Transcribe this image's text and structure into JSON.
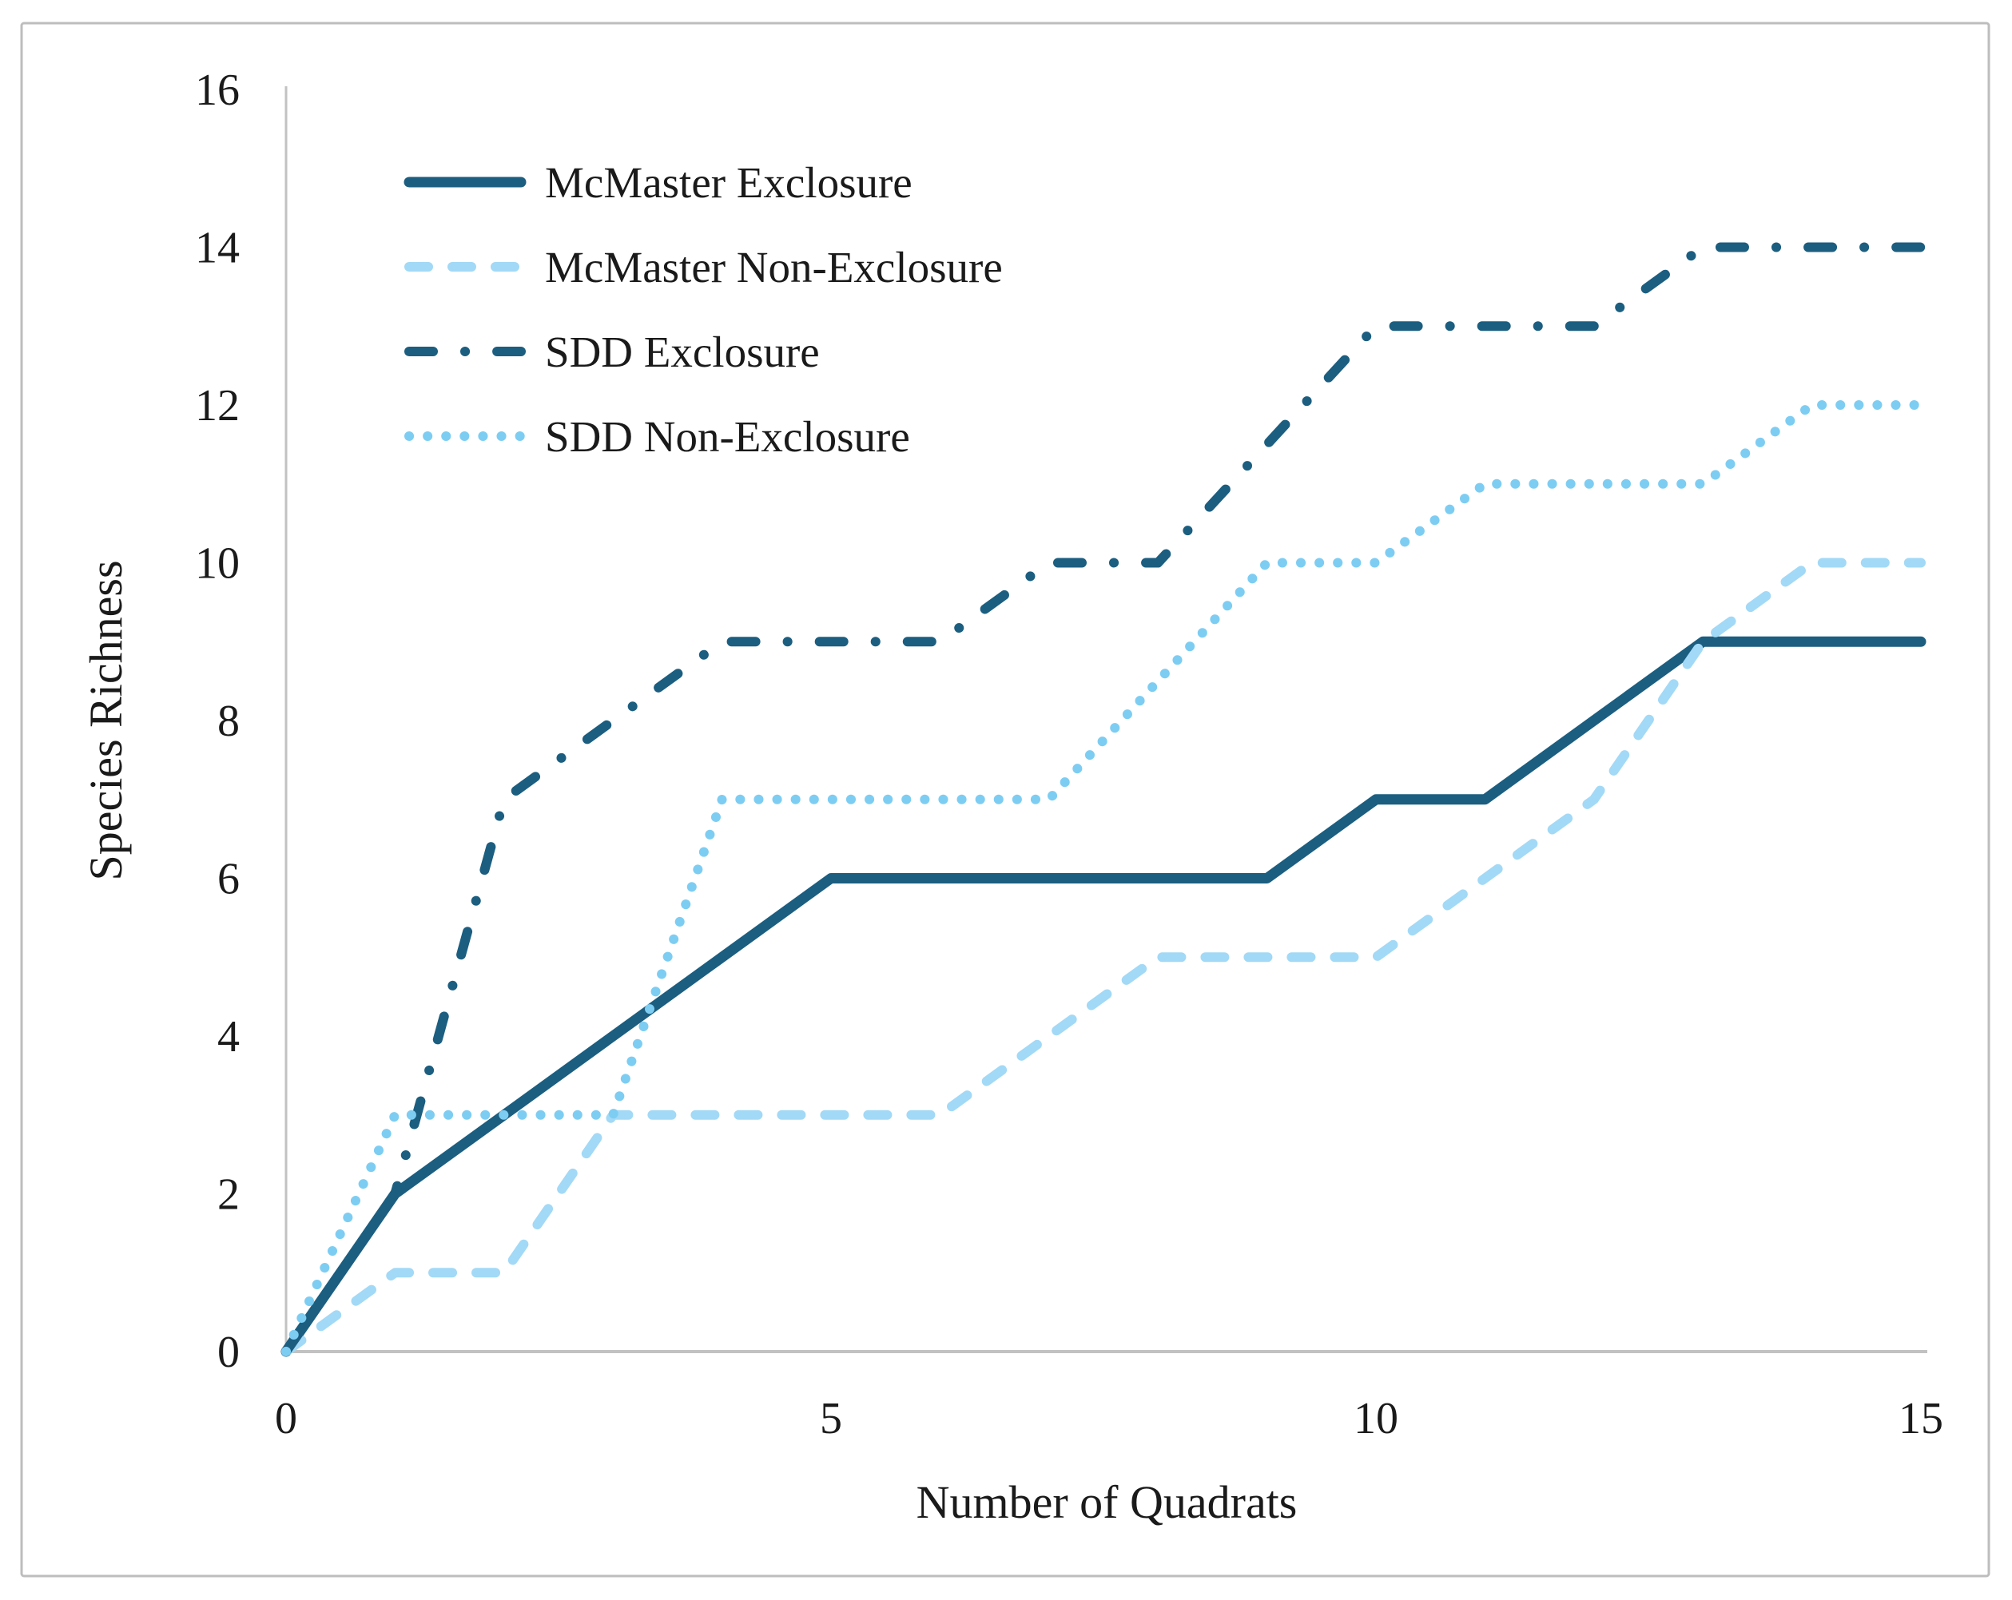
{
  "figure": {
    "background": "#ffffff",
    "border_color": "#bdbdbd",
    "axis_line_color": "#c2c2c2",
    "text_color": "#1a1a1a"
  },
  "chart_data": {
    "type": "line",
    "title": "",
    "xlabel": "Number of Quadrats",
    "ylabel": "Species Richness",
    "xlim": [
      0,
      15
    ],
    "ylim": [
      0,
      16
    ],
    "x_ticks": [
      0,
      5,
      10,
      15
    ],
    "y_ticks": [
      0,
      2,
      4,
      6,
      8,
      10,
      12,
      14,
      16
    ],
    "grid": false,
    "legend_position": "upper-left-inside",
    "x": [
      0,
      1,
      2,
      3,
      4,
      5,
      6,
      7,
      8,
      9,
      10,
      11,
      12,
      13,
      14,
      15
    ],
    "series": [
      {
        "name": "McMaster Exclosure",
        "line_style": "solid",
        "color": "#1b5e80",
        "values": [
          0,
          2,
          3,
          4,
          5,
          6,
          6,
          6,
          6,
          6,
          7,
          7,
          8,
          9,
          9,
          9
        ]
      },
      {
        "name": "McMaster Non-Exclosure",
        "line_style": "dashed",
        "color": "#a2d9f6",
        "values": [
          0,
          1,
          1,
          3,
          3,
          3,
          3,
          4,
          5,
          5,
          5,
          6,
          7,
          9,
          10,
          10
        ]
      },
      {
        "name": "SDD Exclosure",
        "line_style": "dash-dot",
        "color": "#1b5e80",
        "values": [
          0,
          2,
          7,
          8,
          9,
          9,
          9,
          10,
          10,
          11.5,
          13,
          13,
          13,
          14,
          14,
          14
        ]
      },
      {
        "name": "SDD Non-Exclosure",
        "line_style": "dotted",
        "color": "#7dcdf3",
        "values": [
          0,
          3,
          3,
          3,
          7,
          7,
          7,
          7,
          8.5,
          10,
          10,
          11,
          11,
          11,
          12,
          12
        ]
      }
    ]
  }
}
